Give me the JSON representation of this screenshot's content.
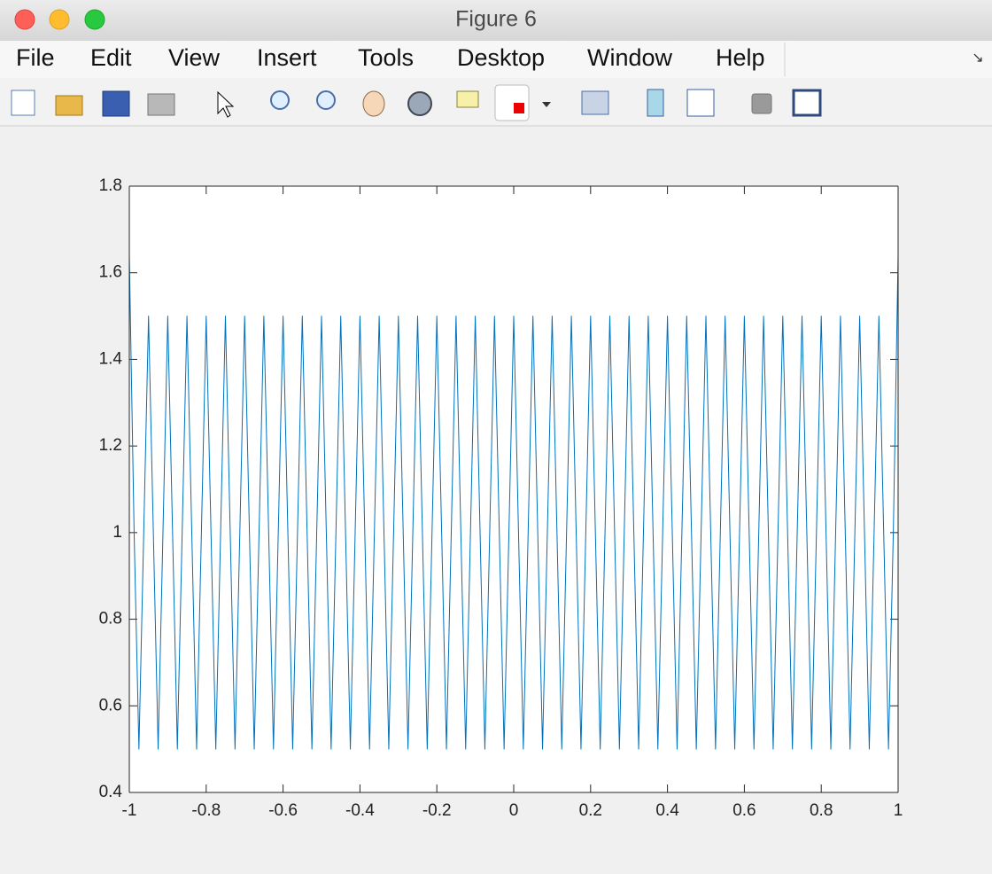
{
  "window": {
    "title": "Figure 6"
  },
  "menu": [
    "File",
    "Edit",
    "View",
    "Insert",
    "Tools",
    "Desktop",
    "Window",
    "Help"
  ],
  "chart_data": {
    "type": "line",
    "color": "#0072bd",
    "x": [
      -1,
      -0.9875,
      -0.975,
      -0.9625,
      -0.95,
      -0.9375,
      -0.925,
      -0.9125,
      -0.9,
      -0.8875,
      -0.875,
      -0.8625,
      -0.85,
      -0.8375,
      -0.825,
      -0.8125,
      -0.8,
      -0.7875,
      -0.775,
      -0.7625,
      -0.75,
      -0.7375,
      -0.725,
      -0.7125,
      -0.7,
      -0.6875,
      -0.675,
      -0.6625,
      -0.65,
      -0.6375,
      -0.625,
      -0.6125,
      -0.6,
      -0.5875,
      -0.575,
      -0.5625,
      -0.55,
      -0.5375,
      -0.525,
      -0.5125,
      -0.5,
      -0.4875,
      -0.475,
      -0.4625,
      -0.45,
      -0.4375,
      -0.425,
      -0.4125,
      -0.4,
      -0.3875,
      -0.375,
      -0.3625,
      -0.35,
      -0.3375,
      -0.325,
      -0.3125,
      -0.3,
      -0.2875,
      -0.275,
      -0.2625,
      -0.25,
      -0.2375,
      -0.225,
      -0.2125,
      -0.2,
      -0.1875,
      -0.175,
      -0.1625,
      -0.15,
      -0.1375,
      -0.125,
      -0.1125,
      -0.1,
      -0.0875,
      -0.075,
      -0.0625,
      -0.05,
      -0.0375,
      -0.025,
      -0.0125,
      0,
      0.0125,
      0.025,
      0.0375,
      0.05,
      0.0625,
      0.075,
      0.0875,
      0.1,
      0.1125,
      0.125,
      0.1375,
      0.15,
      0.1625,
      0.175,
      0.1875,
      0.2,
      0.2125,
      0.225,
      0.2375,
      0.25,
      0.2625,
      0.275,
      0.2875,
      0.3,
      0.3125,
      0.325,
      0.3375,
      0.35,
      0.3625,
      0.375,
      0.3875,
      0.4,
      0.4125,
      0.425,
      0.4375,
      0.45,
      0.4625,
      0.475,
      0.4875,
      0.5,
      0.5125,
      0.525,
      0.5375,
      0.55,
      0.5625,
      0.575,
      0.5875,
      0.6,
      0.6125,
      0.625,
      0.6375,
      0.65,
      0.6625,
      0.675,
      0.6875,
      0.7,
      0.7125,
      0.725,
      0.7375,
      0.75,
      0.7625,
      0.775,
      0.7875,
      0.8,
      0.8125,
      0.825,
      0.8375,
      0.85,
      0.8625,
      0.875,
      0.8875,
      0.9,
      0.9125,
      0.925,
      0.9375,
      0.95,
      0.9625,
      0.975,
      0.9875,
      1
    ],
    "values": [
      1.64,
      1,
      0.5,
      1,
      1.5,
      1,
      0.5,
      1,
      1.5,
      1,
      0.5,
      1,
      1.5,
      1,
      0.5,
      1,
      1.5,
      1,
      0.5,
      1,
      1.5,
      1,
      0.5,
      1,
      1.5,
      1,
      0.5,
      1,
      1.5,
      1,
      0.5,
      1,
      1.5,
      1,
      0.5,
      1,
      1.5,
      1,
      0.5,
      1,
      1.5,
      1,
      0.5,
      1,
      1.5,
      1,
      0.5,
      1,
      1.5,
      1,
      0.5,
      1,
      1.5,
      1,
      0.5,
      1,
      1.5,
      1,
      0.5,
      1,
      1.5,
      1,
      0.5,
      1,
      1.5,
      1,
      0.5,
      1,
      1.5,
      1,
      0.5,
      1,
      1.5,
      1,
      0.5,
      1,
      1.5,
      1,
      0.5,
      1,
      1.5,
      1,
      0.5,
      1,
      1.5,
      1,
      0.5,
      1,
      1.5,
      1,
      0.5,
      1,
      1.5,
      1,
      0.5,
      1,
      1.5,
      1,
      0.5,
      1,
      1.5,
      1,
      0.5,
      1,
      1.5,
      1,
      0.5,
      1,
      1.5,
      1,
      0.5,
      1,
      1.5,
      1,
      0.5,
      1,
      1.5,
      1,
      0.5,
      1,
      1.5,
      1,
      0.5,
      1,
      1.5,
      1,
      0.5,
      1,
      1.5,
      1,
      0.5,
      1,
      1.5,
      1,
      0.5,
      1,
      1.5,
      1,
      0.5,
      1,
      1.5,
      1,
      0.5,
      1,
      1.5,
      1,
      0.5,
      1,
      1.5,
      1,
      0.5,
      1,
      1.5,
      1,
      0.5,
      1,
      1.5,
      1,
      0.5,
      1,
      1.64
    ],
    "xlim": [
      -1,
      1
    ],
    "ylim": [
      0.4,
      1.8
    ],
    "xticks": [
      -1,
      -0.8,
      -0.6,
      -0.4,
      -0.2,
      0,
      0.2,
      0.4,
      0.6,
      0.8,
      1
    ],
    "yticks": [
      0.4,
      0.6,
      0.8,
      1,
      1.2,
      1.4,
      1.6,
      1.8
    ],
    "grid": false,
    "box": true
  }
}
